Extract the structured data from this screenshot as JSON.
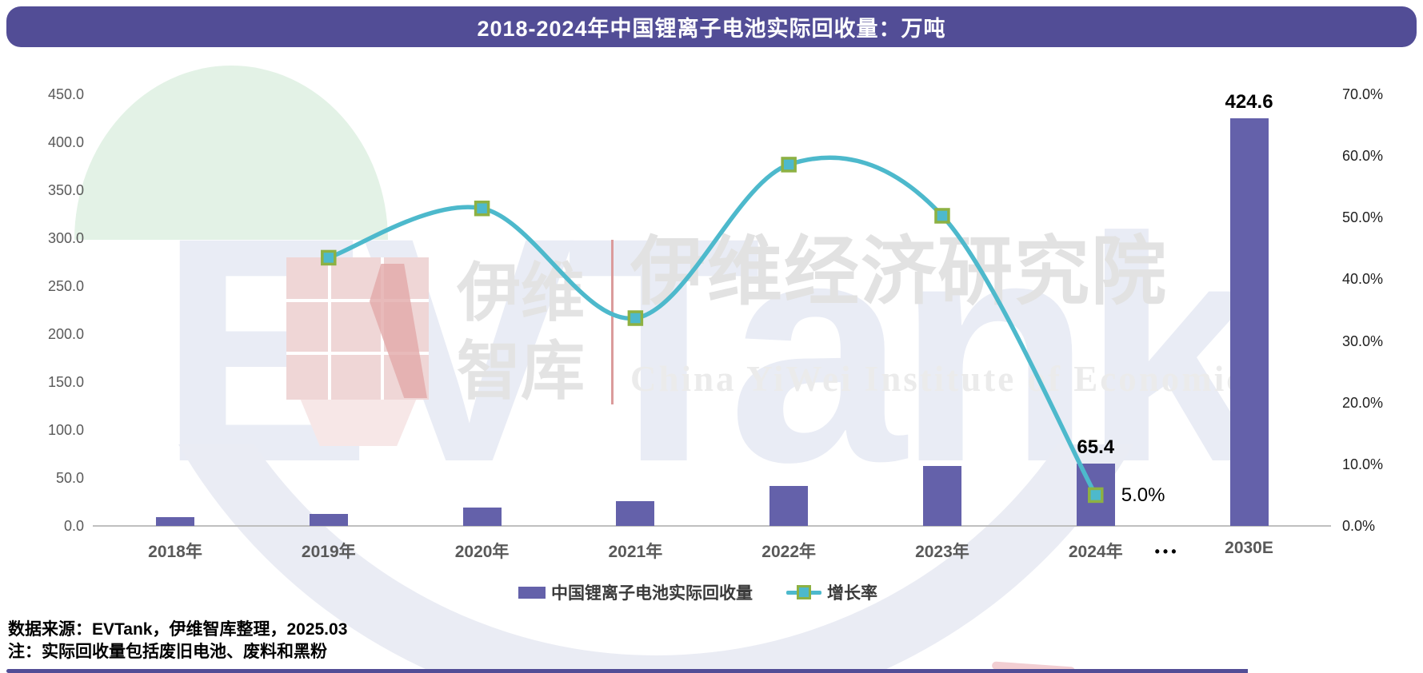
{
  "title": {
    "text": "2018-2024年中国锂离子电池实际回收量：万吨"
  },
  "watermark": {
    "evtank": "EVTank",
    "yiwei_line1": "伊维",
    "yiwei_line2": "智库",
    "institute_cn": "伊维经济研究院",
    "institute_en": "China YiWei Institute of Economics"
  },
  "chart_data": {
    "type": "bar",
    "title": "2018-2024年中国锂离子电池实际回收量：万吨",
    "categories": [
      "2018年",
      "2019年",
      "2020年",
      "2021年",
      "2022年",
      "2023年",
      "2024年",
      "2030E"
    ],
    "ellipsis_label": "•••",
    "series": [
      {
        "name": "中国锂离子电池实际回收量",
        "type": "bar",
        "axis": "left",
        "values": [
          9.0,
          12.9,
          19.5,
          26.1,
          41.5,
          62.3,
          65.4,
          424.6
        ]
      },
      {
        "name": "增长率",
        "type": "line",
        "axis": "right",
        "values": [
          null,
          43.5,
          51.5,
          33.7,
          58.6,
          50.3,
          5.0,
          null
        ]
      }
    ],
    "data_labels": [
      {
        "text": "65.4",
        "series": "bar",
        "index": 6,
        "pos": "above",
        "bold": true
      },
      {
        "text": "424.6",
        "series": "bar",
        "index": 7,
        "pos": "above",
        "bold": true
      },
      {
        "text": "5.0%",
        "series": "line",
        "index": 6,
        "pos": "right",
        "bold": false
      }
    ],
    "left_axis": {
      "min": 0,
      "max": 450,
      "step": 50,
      "tick_labels": [
        "450.0",
        "400.0",
        "350.0",
        "300.0",
        "250.0",
        "200.0",
        "150.0",
        "100.0",
        "50.0",
        "0.0"
      ],
      "tick_values": [
        450,
        400,
        350,
        300,
        250,
        200,
        150,
        100,
        50,
        0
      ]
    },
    "right_axis": {
      "min": 0,
      "max": 70,
      "step": 10,
      "tick_labels": [
        "70.0%",
        "60.0%",
        "50.0%",
        "40.0%",
        "30.0%",
        "20.0%",
        "10.0%",
        "0.0%"
      ],
      "tick_values": [
        70,
        60,
        50,
        40,
        30,
        20,
        10,
        0
      ]
    },
    "grid": false,
    "legend_position": "bottom",
    "colors": {
      "bar": "#6461AA",
      "line": "#4DB9CC",
      "marker_fill": "#4DB9CC",
      "marker_border": "#8DB143",
      "title_bar": "#524D96",
      "bottom_strip": "#524D96",
      "axis_line": "#BFBFBF",
      "left_tick_text": "#595959",
      "right_tick_text": "#1F1F1F",
      "x_label_text": "#595959",
      "data_label_text": "#000000"
    }
  },
  "legend": [
    {
      "label": "中国锂离子电池实际回收量",
      "type": "bar"
    },
    {
      "label": "增长率",
      "type": "line"
    }
  ],
  "footer": {
    "source": "数据来源：EVTank，伊维智库整理，2025.03",
    "note": "注：实际回收量包括废旧电池、废料和黑粉"
  }
}
